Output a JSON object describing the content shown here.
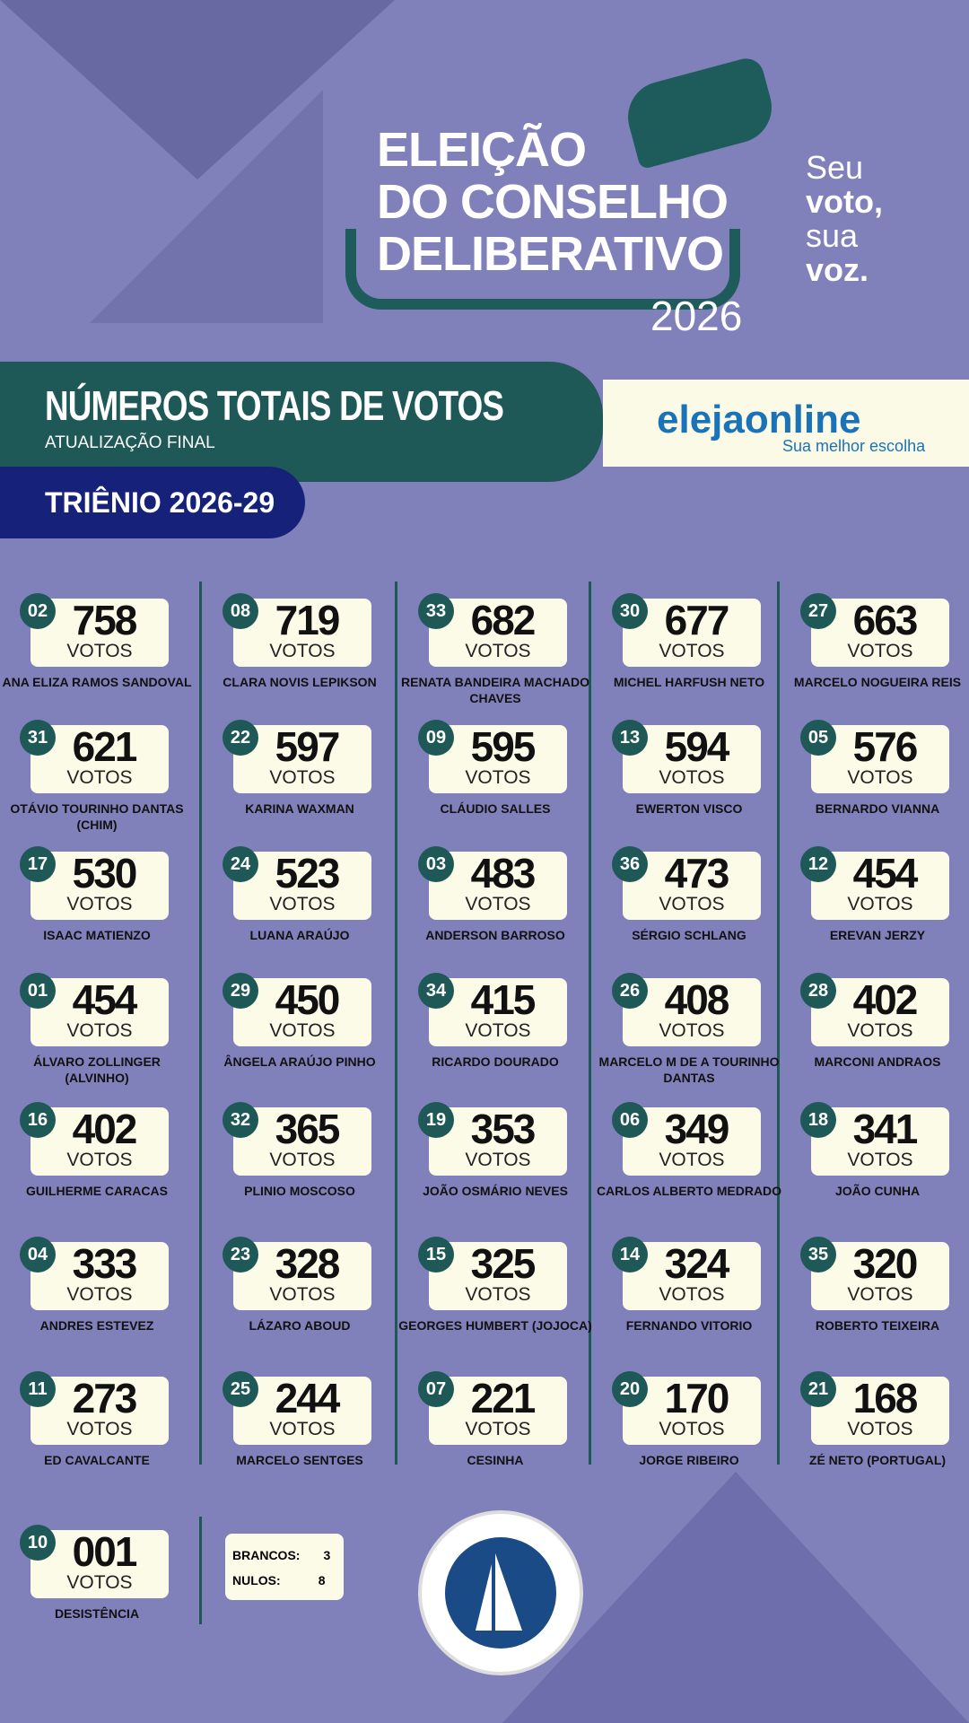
{
  "header": {
    "title_lines": [
      "ELEIÇÃO",
      "DO CONSELHO",
      "DELIBERATIVO"
    ],
    "year": "2026",
    "slogan": [
      "Seu",
      "voto,",
      "sua",
      "voz."
    ]
  },
  "banner": {
    "title": "NÚMEROS TOTAIS DE VOTOS",
    "subtitle": "ATUALIZAÇÃO FINAL",
    "term": "TRIÊNIO 2026-29"
  },
  "sponsor": {
    "name": "elejaonline",
    "tagline": "Sua melhor escolha"
  },
  "votes_label": "VOTOS",
  "candidates": [
    {
      "n": "02",
      "v": "758",
      "name": "ANA ELIZA RAMOS SANDOVAL"
    },
    {
      "n": "08",
      "v": "719",
      "name": "CLARA NOVIS LEPIKSON"
    },
    {
      "n": "33",
      "v": "682",
      "name": "RENATA BANDEIRA MACHADO CHAVES"
    },
    {
      "n": "30",
      "v": "677",
      "name": "MICHEL HARFUSH NETO"
    },
    {
      "n": "27",
      "v": "663",
      "name": "MARCELO NOGUEIRA REIS"
    },
    {
      "n": "31",
      "v": "621",
      "name": "OTÁVIO TOURINHO DANTAS (CHIM)"
    },
    {
      "n": "22",
      "v": "597",
      "name": "KARINA WAXMAN"
    },
    {
      "n": "09",
      "v": "595",
      "name": "CLÁUDIO SALLES"
    },
    {
      "n": "13",
      "v": "594",
      "name": "EWERTON VISCO"
    },
    {
      "n": "05",
      "v": "576",
      "name": "BERNARDO VIANNA"
    },
    {
      "n": "17",
      "v": "530",
      "name": "ISAAC MATIENZO"
    },
    {
      "n": "24",
      "v": "523",
      "name": "LUANA ARAÚJO"
    },
    {
      "n": "03",
      "v": "483",
      "name": "ANDERSON BARROSO"
    },
    {
      "n": "36",
      "v": "473",
      "name": "SÉRGIO SCHLANG"
    },
    {
      "n": "12",
      "v": "454",
      "name": "EREVAN JERZY"
    },
    {
      "n": "01",
      "v": "454",
      "name": "ÁLVARO ZOLLINGER (ALVINHO)"
    },
    {
      "n": "29",
      "v": "450",
      "name": "ÂNGELA ARAÚJO PINHO"
    },
    {
      "n": "34",
      "v": "415",
      "name": "RICARDO DOURADO"
    },
    {
      "n": "26",
      "v": "408",
      "name": "MARCELO M DE A TOURINHO DANTAS"
    },
    {
      "n": "28",
      "v": "402",
      "name": "MARCONI ANDRAOS"
    },
    {
      "n": "16",
      "v": "402",
      "name": "GUILHERME CARACAS"
    },
    {
      "n": "32",
      "v": "365",
      "name": "PLINIO MOSCOSO"
    },
    {
      "n": "19",
      "v": "353",
      "name": "JOÃO OSMÁRIO NEVES"
    },
    {
      "n": "06",
      "v": "349",
      "name": "CARLOS ALBERTO MEDRADO"
    },
    {
      "n": "18",
      "v": "341",
      "name": "JOÃO CUNHA"
    },
    {
      "n": "04",
      "v": "333",
      "name": "ANDRES ESTEVEZ"
    },
    {
      "n": "23",
      "v": "328",
      "name": "LÁZARO ABOUD"
    },
    {
      "n": "15",
      "v": "325",
      "name": "GEORGES HUMBERT (JOJOCA)"
    },
    {
      "n": "14",
      "v": "324",
      "name": "FERNANDO VITORIO"
    },
    {
      "n": "35",
      "v": "320",
      "name": "ROBERTO TEIXEIRA"
    },
    {
      "n": "11",
      "v": "273",
      "name": "ED CAVALCANTE"
    },
    {
      "n": "25",
      "v": "244",
      "name": "MARCELO SENTGES"
    },
    {
      "n": "07",
      "v": "221",
      "name": "CESINHA"
    },
    {
      "n": "20",
      "v": "170",
      "name": "JORGE RIBEIRO"
    },
    {
      "n": "21",
      "v": "168",
      "name": "ZÉ NETO (PORTUGAL)"
    },
    {
      "n": "10",
      "v": "001",
      "name": "DESISTÊNCIA"
    }
  ],
  "others": {
    "blank_label": "BRANCOS:",
    "blank": "3",
    "null_label": "NULOS:",
    "null": "8"
  },
  "club_logo": "YACHT CLUBE DA BAHIA",
  "colors": {
    "background": "#8080bb",
    "teal": "#1e5958",
    "navy": "#16217a",
    "card": "#fcfbe8"
  }
}
